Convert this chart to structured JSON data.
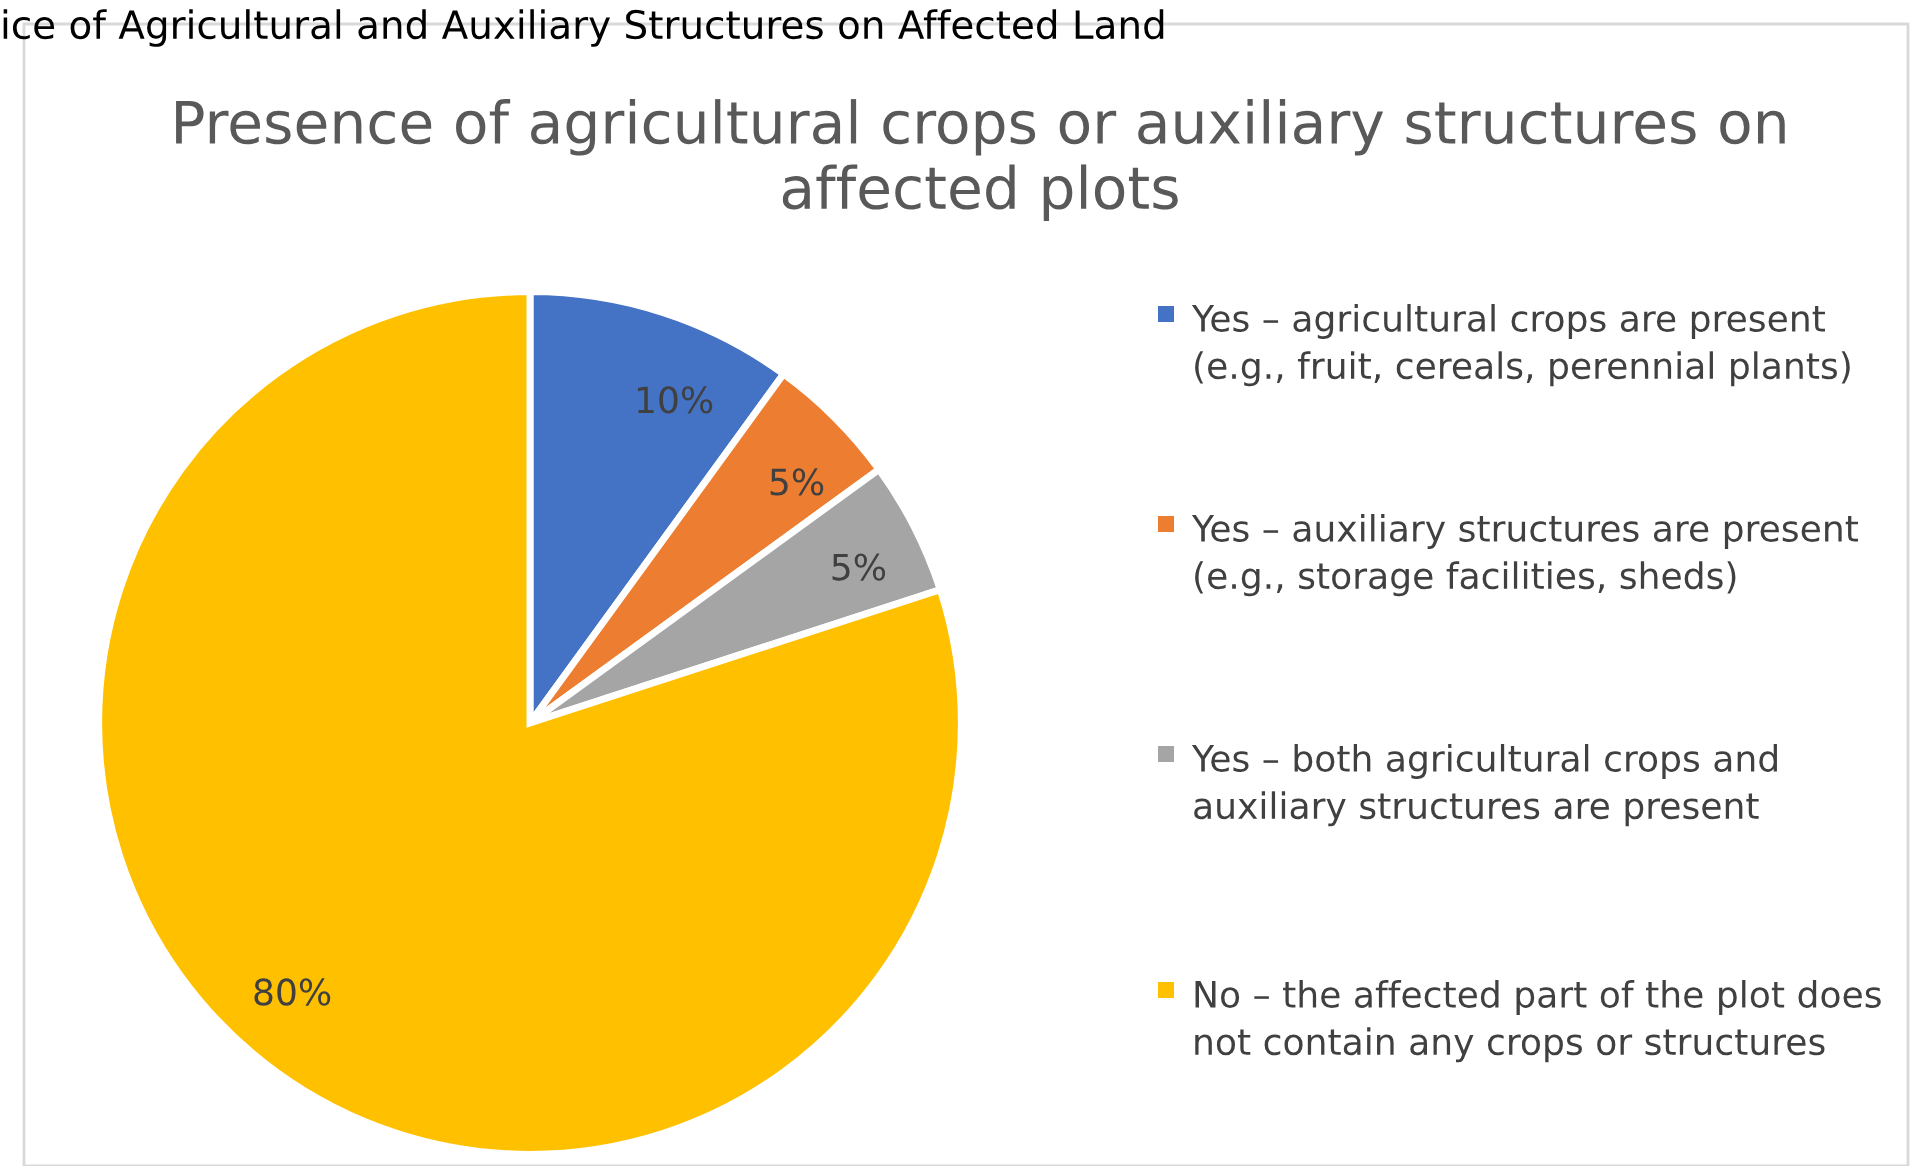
{
  "chart_data": {
    "type": "pie",
    "title": "Presence of agricultural crops or auxiliary structures on affected plots",
    "annotations": [
      "ice of Agricultural and Auxiliary Structures on Affected Land"
    ],
    "categories": [
      "Yes – agricultural crops are present (e.g., fruit, cereals, perennial plants)",
      "Yes – auxiliary structures are present (e.g., storage facilities, sheds)",
      "Yes – both agricultural crops and auxiliary structures are present",
      "No – the affected part of the plot does not contain any crops or structures"
    ],
    "values": [
      10,
      5,
      5,
      80
    ],
    "colors": [
      "#4472c4",
      "#ed7d31",
      "#a5a5a5",
      "#ffc000"
    ],
    "value_labels": [
      "10%",
      "5%",
      "5%",
      "80%"
    ],
    "legend": "right"
  }
}
